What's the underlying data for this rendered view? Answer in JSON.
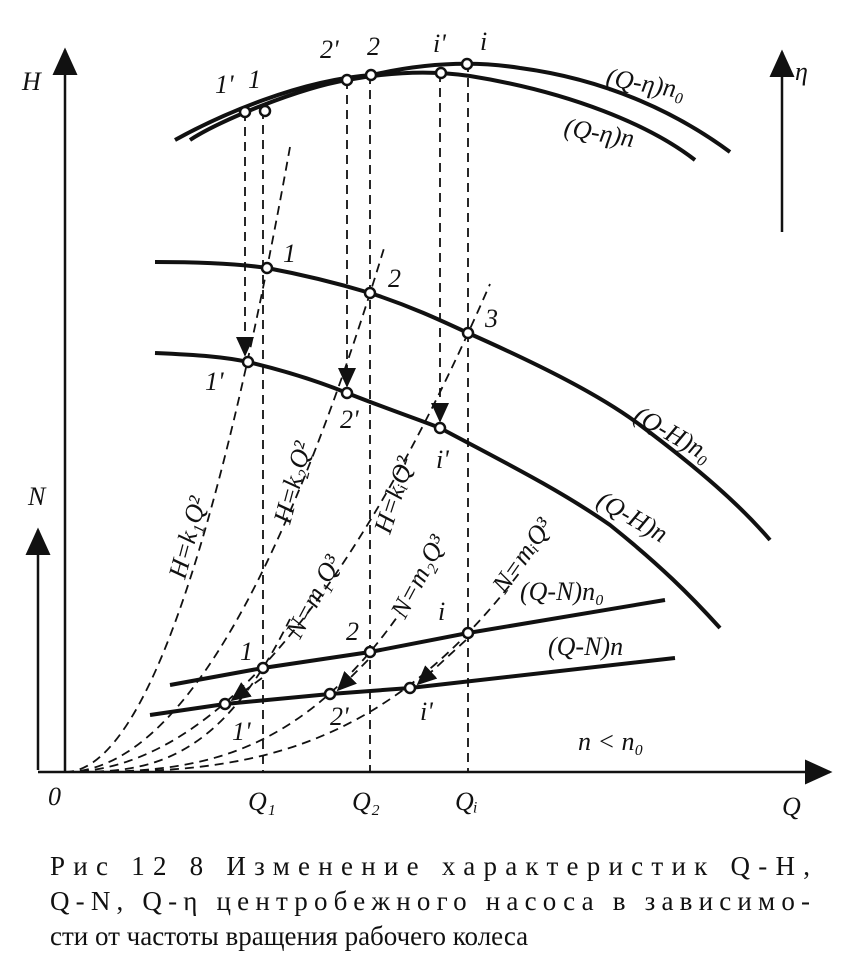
{
  "axes": {
    "h": "H",
    "eta": "η",
    "n": "N",
    "q": "Q",
    "origin": "0"
  },
  "q_ticks": [
    "Q₁",
    "Q₂",
    "Qᵢ"
  ],
  "efficiency_points": [
    "1'",
    "1",
    "2'",
    "2",
    "i'",
    "i"
  ],
  "head_points": [
    "1",
    "2",
    "3",
    "1'",
    "2'",
    "i'"
  ],
  "power_points": [
    "1",
    "2",
    "i",
    "1'",
    "2'",
    "i'"
  ],
  "curve_labels": [
    "(Q-η)n₀",
    "(Q-η)n",
    "(Q-H)n₀",
    "(Q-H)n",
    "(Q-N)n₀",
    "(Q-N)n"
  ],
  "parabola_labels": [
    "H=k₁Q²",
    "H=k₂Q²",
    "H=kᵢQ²",
    "N=m₁Q³",
    "N=m₂Q³",
    "N=mᵢQ³"
  ],
  "condition": "n < n₀",
  "caption": [
    "Рис  12 8  Изменение  характеристик  Q-H,",
    "Q-N, Q-η центробежного насоса в зависимо-",
    "сти от частоты вращения рабочего колеса"
  ]
}
